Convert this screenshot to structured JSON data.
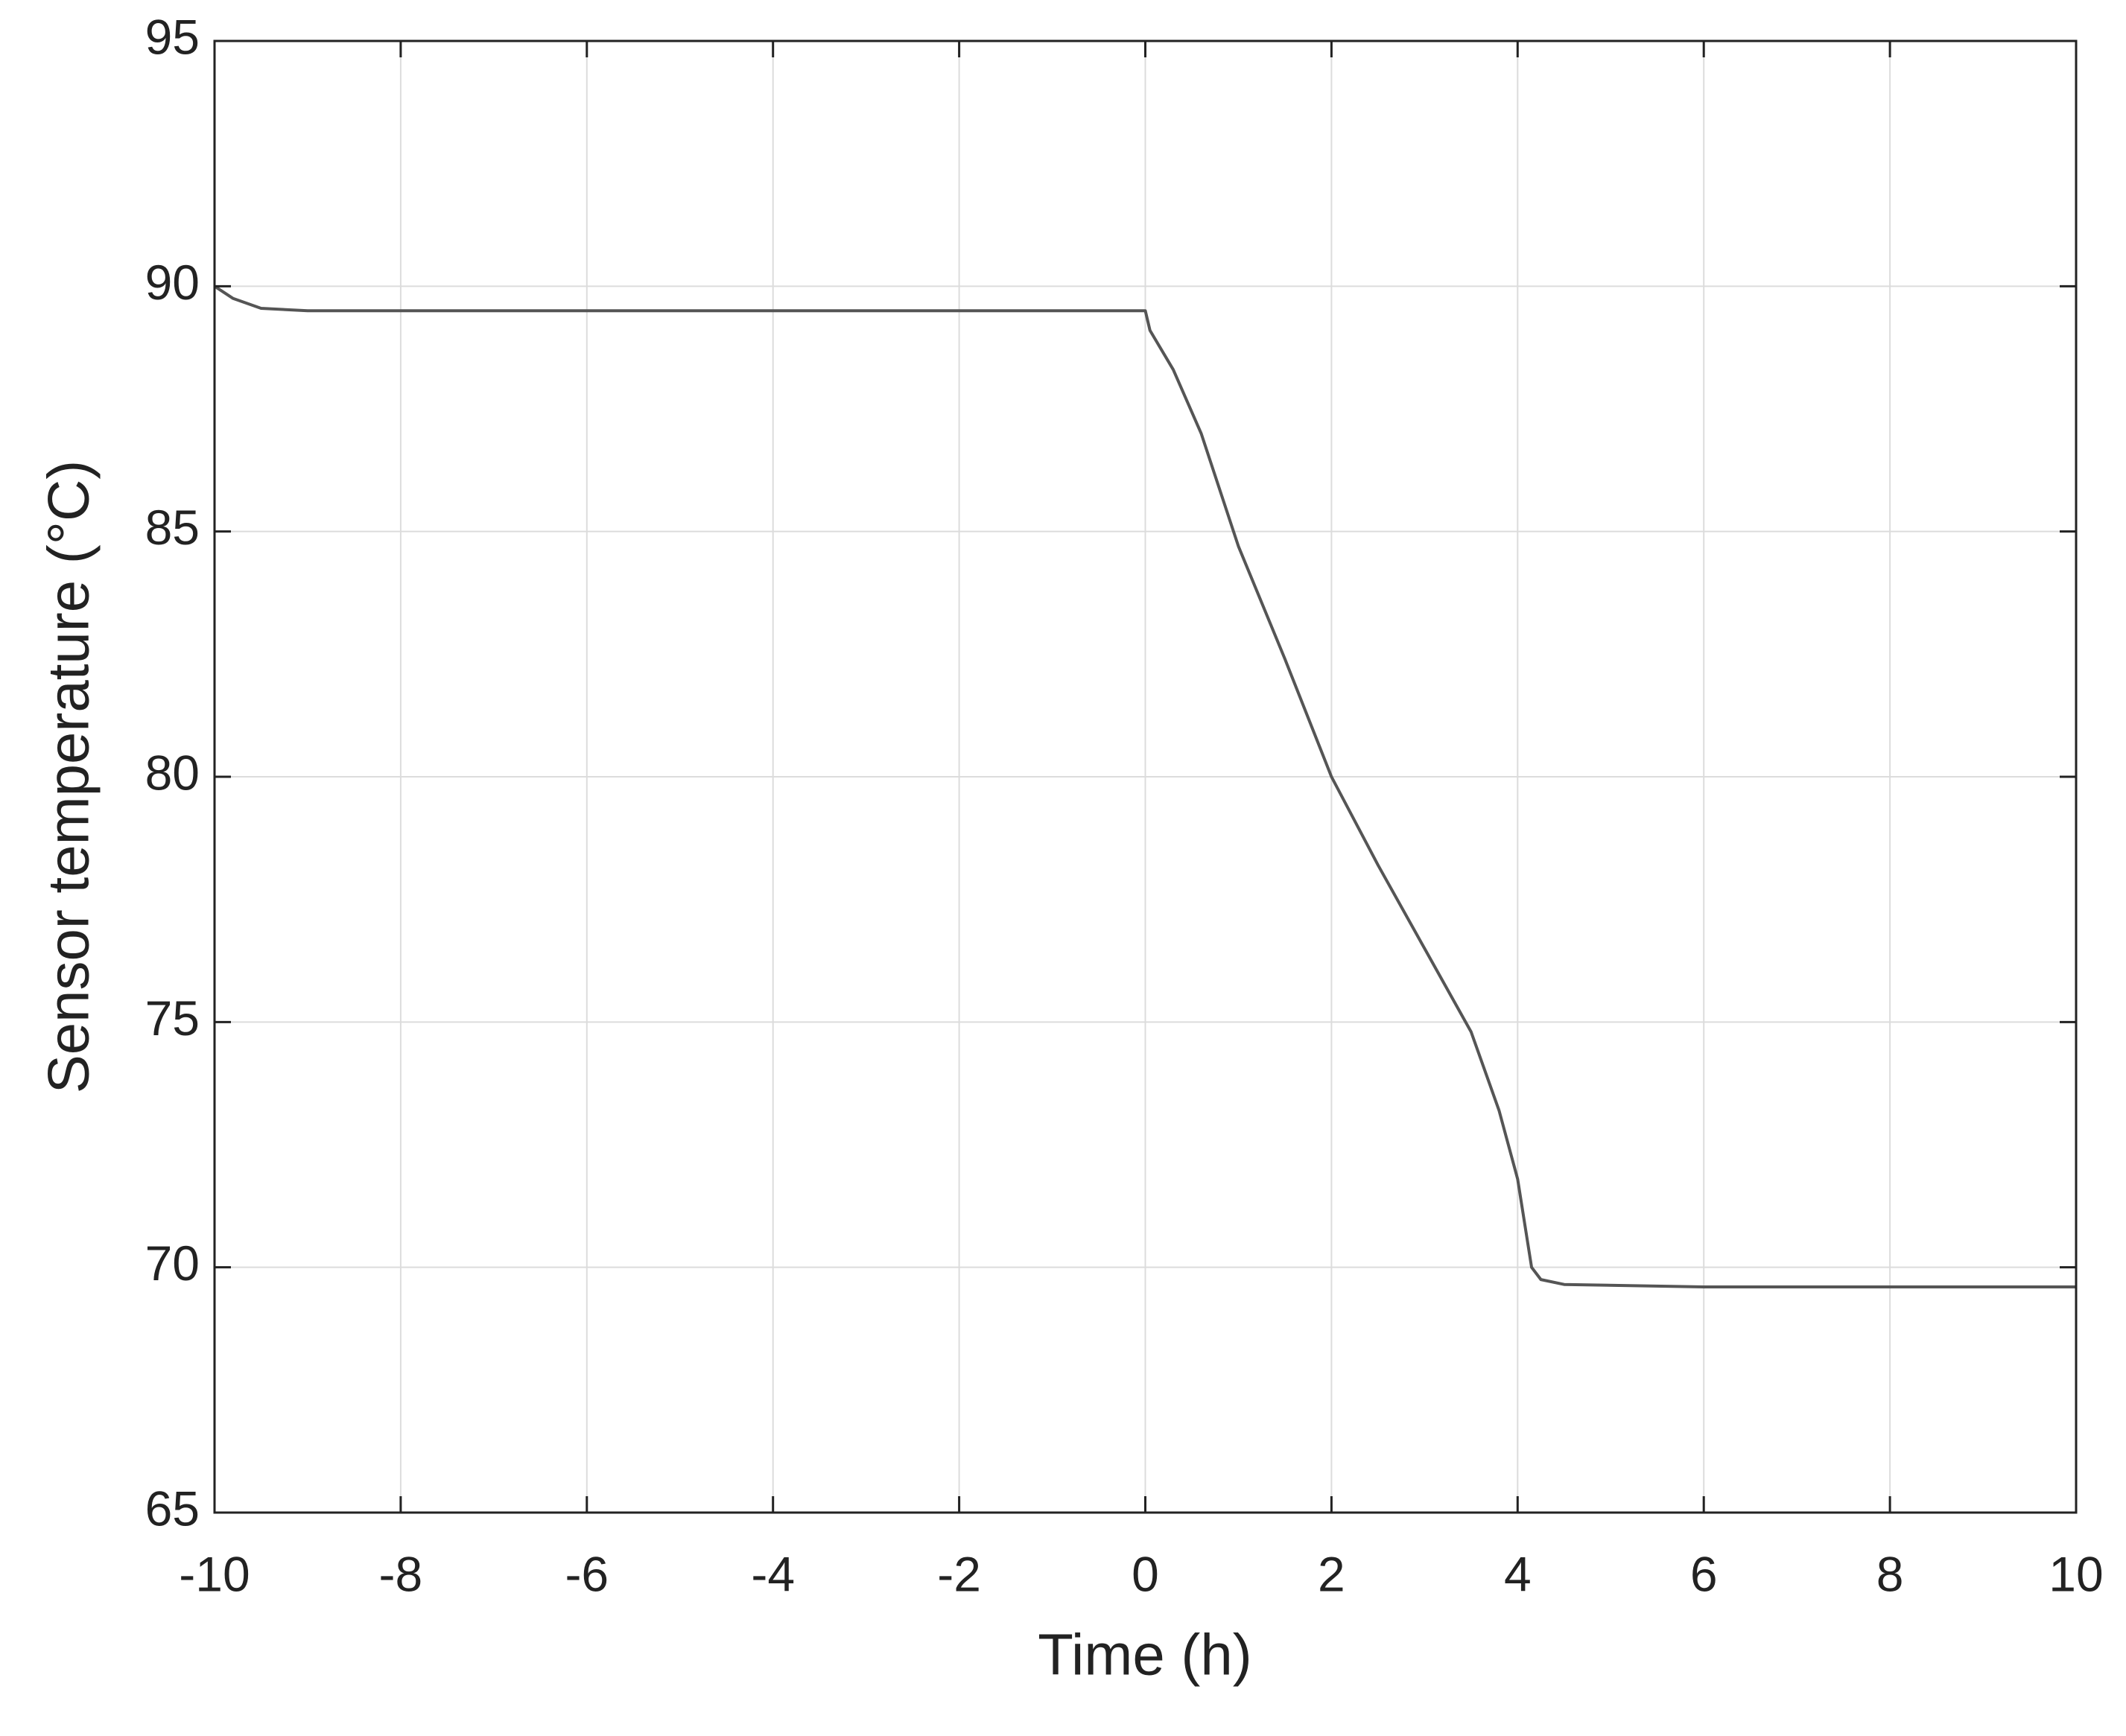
{
  "chart_data": {
    "type": "line",
    "xlabel": "Time (h)",
    "ylabel": "Sensor temperature (°C)",
    "x": [
      -10,
      -9.8,
      -9.5,
      -9,
      -6,
      -2,
      0,
      0.05,
      0.3,
      0.6,
      1,
      1.5,
      2,
      2.5,
      3,
      3.5,
      3.8,
      4,
      4.15,
      4.25,
      4.5,
      6,
      10
    ],
    "values": [
      90,
      89.75,
      89.55,
      89.5,
      89.5,
      89.5,
      89.5,
      89.1,
      88.3,
      87.0,
      84.7,
      82.4,
      80,
      78.2,
      76.5,
      74.8,
      73.2,
      71.8,
      70,
      69.75,
      69.65,
      69.6,
      69.6
    ],
    "color": "#555555",
    "xlim": [
      -10,
      10
    ],
    "xticks": [
      -10,
      -8,
      -6,
      -4,
      -2,
      0,
      2,
      4,
      6,
      8,
      10
    ],
    "ylim": [
      65,
      95
    ],
    "yticks": [
      65,
      70,
      75,
      80,
      85,
      90,
      95
    ],
    "grid": true
  }
}
